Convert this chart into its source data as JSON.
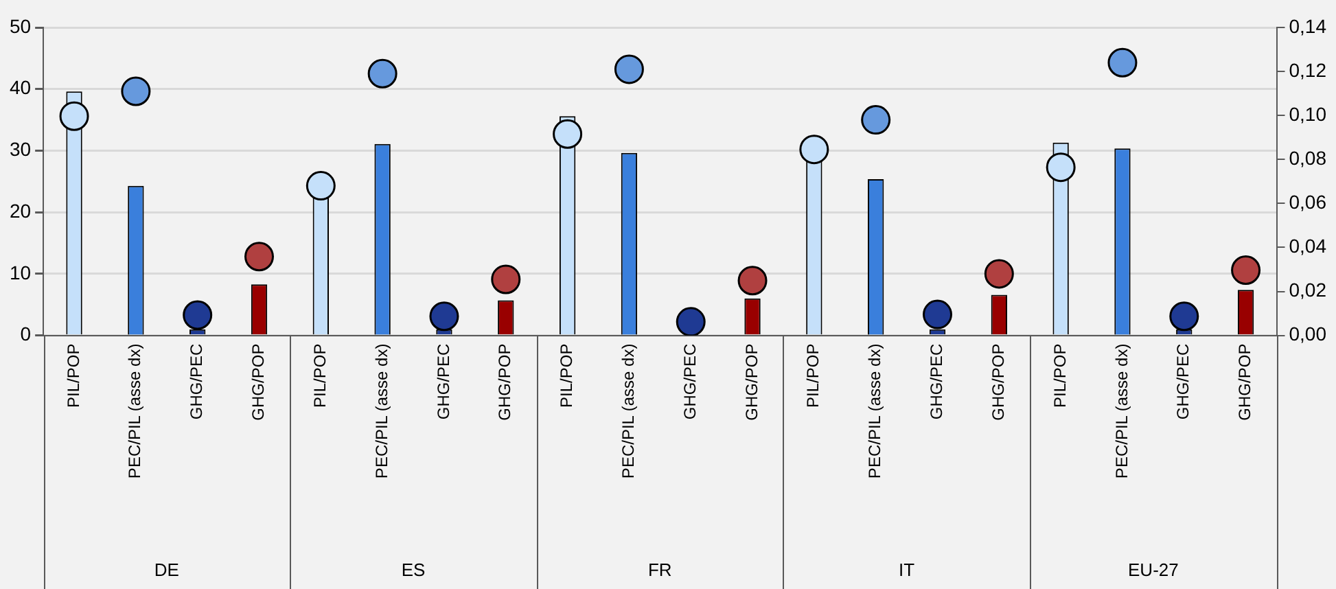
{
  "chart_data": {
    "type": "bar",
    "categories": [
      "PIL/POP",
      "PEC/PIL (asse dx)",
      "GHG/PEC",
      "GHG/POP",
      "PIL/POP",
      "PEC/PIL (asse dx)",
      "GHG/PEC",
      "GHG/POP",
      "PIL/POP",
      "PEC/PIL (asse dx)",
      "GHG/PEC",
      "GHG/POP",
      "PIL/POP",
      "PEC/PIL (asse dx)",
      "GHG/PEC",
      "GHG/POP",
      "PIL/POP",
      "PEC/PIL (asse dx)",
      "GHG/PEC",
      "GHG/POP"
    ],
    "series": [
      {
        "color": "#c5e0fa",
        "values": [
          39.6,
          null,
          null,
          null,
          22.5,
          null,
          null,
          null,
          35.6,
          null,
          null,
          null,
          29.5,
          null,
          null,
          null,
          31.3,
          null,
          null,
          null
        ]
      },
      {
        "axis": "y2",
        "color": "#3a7fdc",
        "values": [
          null,
          0.068,
          null,
          null,
          null,
          0.087,
          null,
          null,
          null,
          0.083,
          null,
          null,
          null,
          0.071,
          null,
          null,
          null,
          0.085,
          null,
          null
        ]
      },
      {
        "color": "#1f3a93",
        "values": [
          null,
          null,
          1,
          null,
          null,
          null,
          1,
          null,
          null,
          null,
          null,
          null,
          null,
          null,
          1,
          null,
          null,
          null,
          1,
          null
        ]
      },
      {
        "color": "#990000",
        "values": [
          null,
          null,
          null,
          8.3,
          null,
          null,
          null,
          5.7,
          null,
          null,
          null,
          6.0,
          null,
          null,
          null,
          6.6,
          null,
          null,
          null,
          7.4
        ]
      },
      {
        "type": "scatter",
        "color": "#c5e0fa",
        "values": [
          35.6,
          null,
          null,
          null,
          24.3,
          null,
          null,
          null,
          32.7,
          null,
          null,
          null,
          30.2,
          null,
          null,
          null,
          27.3,
          null,
          null,
          null
        ]
      },
      {
        "type": "scatter",
        "axis": "y2",
        "color": "#6699dd",
        "values": [
          null,
          0.111,
          null,
          null,
          null,
          0.119,
          null,
          null,
          null,
          0.121,
          null,
          null,
          null,
          0.098,
          null,
          null,
          null,
          0.124,
          null,
          null
        ]
      },
      {
        "type": "scatter",
        "color": "#1f3a93",
        "values": [
          null,
          null,
          3.3,
          null,
          null,
          null,
          3.1,
          null,
          null,
          null,
          2.2,
          null,
          null,
          null,
          3.4,
          null,
          null,
          null,
          3.1,
          null
        ]
      },
      {
        "type": "scatter",
        "color": "#b04040",
        "values": [
          null,
          null,
          null,
          12.8,
          null,
          null,
          null,
          9.1,
          null,
          null,
          null,
          8.9,
          null,
          null,
          null,
          10.0,
          null,
          null,
          null,
          10.6
        ]
      }
    ],
    "ylim": [
      0,
      50
    ],
    "yticks": [
      0,
      10,
      20,
      30,
      40,
      50
    ],
    "y2lim": [
      0,
      0.14
    ],
    "y2ticks": [
      {
        "value": 0,
        "label": "0,00"
      },
      {
        "value": 0.02,
        "label": "0,02"
      },
      {
        "value": 0.04,
        "label": "0,04"
      },
      {
        "value": 0.06,
        "label": "0,06"
      },
      {
        "value": 0.08,
        "label": "0,08"
      },
      {
        "value": 0.1,
        "label": "0,10"
      },
      {
        "value": 0.12,
        "label": "0,12"
      },
      {
        "value": 0.14,
        "label": "0,14"
      }
    ],
    "grid": "y",
    "legend": false,
    "marker": "circle",
    "annotations": [
      "DE",
      "ES",
      "FR",
      "IT",
      "EU-27"
    ]
  }
}
